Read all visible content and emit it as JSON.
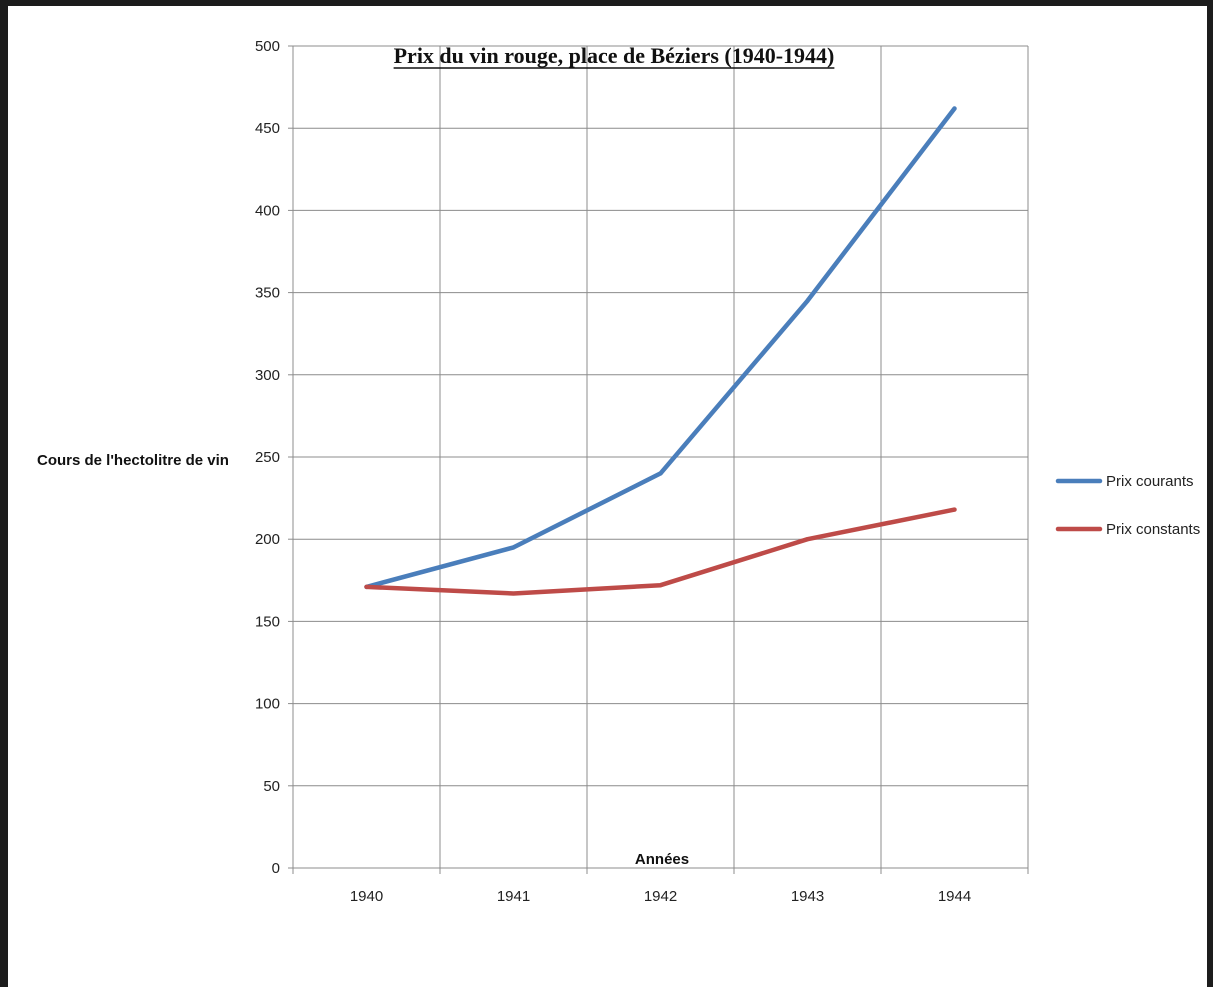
{
  "chart_data": {
    "type": "line",
    "title": "Prix du vin rouge, place de Béziers (1940-1944)",
    "xlabel": "Années",
    "ylabel": "Cours de l'hectolitre de vin",
    "categories": [
      "1940",
      "1941",
      "1942",
      "1943",
      "1944"
    ],
    "ylim": [
      0,
      500
    ],
    "yticks": [
      0,
      50,
      100,
      150,
      200,
      250,
      300,
      350,
      400,
      450,
      500
    ],
    "grid": true,
    "legend_position": "right",
    "series": [
      {
        "name": "Prix courants",
        "values": [
          171,
          195,
          240,
          345,
          462
        ],
        "color": "#4a7ebb"
      },
      {
        "name": "Prix constants",
        "values": [
          171,
          167,
          172,
          200,
          218
        ],
        "color": "#be4b48"
      }
    ]
  }
}
